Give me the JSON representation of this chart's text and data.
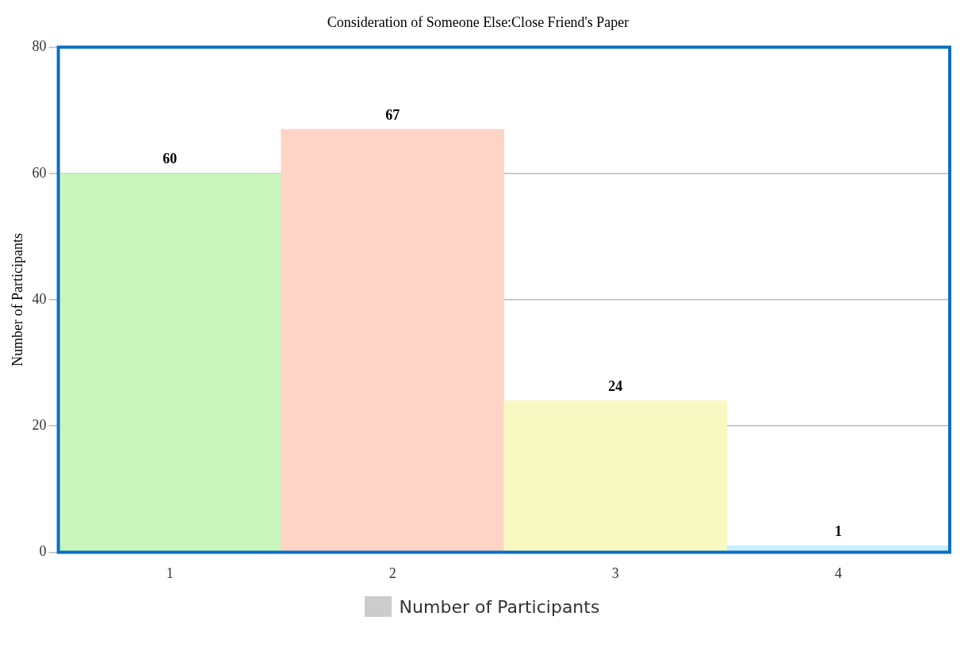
{
  "chart_data": {
    "type": "bar",
    "title": "Consideration of Someone Else:Close Friend's Paper",
    "ylabel": "Number of Participants",
    "categories": [
      "1",
      "2",
      "3",
      "4"
    ],
    "series": [
      {
        "name": "Number of Participants",
        "color": "#cccccc",
        "colors": [
          "#c8f5bc",
          "#fed4c6",
          "#f8f8c2",
          "#c8eefb"
        ],
        "values": [
          60,
          67,
          24,
          1
        ]
      }
    ],
    "ylim": [
      0,
      80
    ],
    "yticks": [
      0,
      20,
      40,
      60,
      80
    ],
    "grid": "y",
    "legend": "bottom",
    "data_labels": true
  }
}
